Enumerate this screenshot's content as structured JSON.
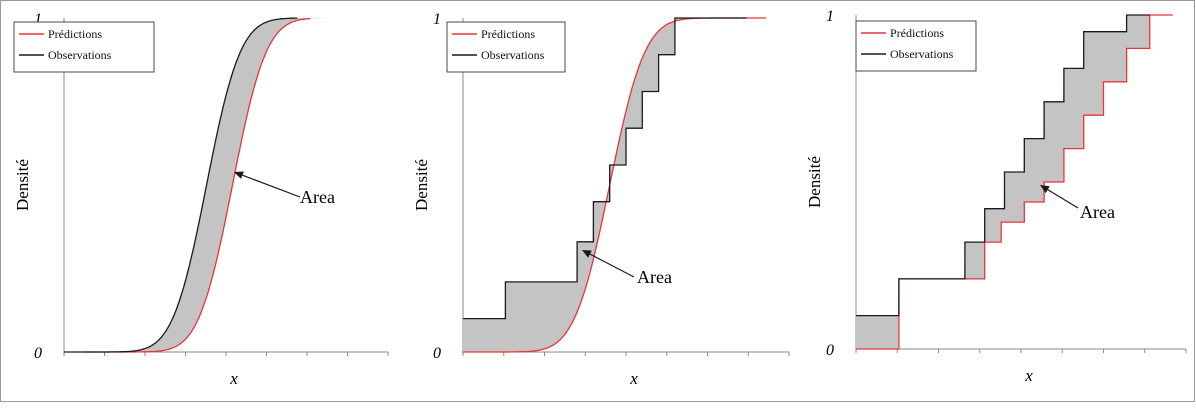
{
  "colors": {
    "predictions": "#e8343a",
    "observations": "#1a1a1a",
    "area_fill": "#c4c4c4",
    "axis": "#8a8a8a"
  },
  "chart_data": [
    {
      "type": "area",
      "title": "",
      "xlabel": "x",
      "ylabel": "Densité",
      "ylim": [
        0,
        1
      ],
      "yticks": [
        "0",
        "1"
      ],
      "grid": false,
      "legend": "top-left",
      "annotation": "Area",
      "series": [
        {
          "name": "Prédictions",
          "kind": "smooth-cdf",
          "center": 0.52,
          "scale": 0.082,
          "x": [
            0.06,
            0.76
          ]
        },
        {
          "name": "Observations",
          "kind": "smooth-cdf",
          "center": 0.44,
          "scale": 0.082,
          "x": [
            0.0,
            0.72
          ]
        }
      ]
    },
    {
      "type": "area",
      "title": "",
      "xlabel": "x",
      "ylabel": "Densité",
      "ylim": [
        0,
        1
      ],
      "yticks": [
        "0",
        "1"
      ],
      "grid": false,
      "legend": "top-left",
      "annotation": "Area",
      "series": [
        {
          "name": "Prédictions",
          "kind": "smooth-cdf",
          "center": 0.45,
          "scale": 0.085,
          "x": [
            0.0,
            0.93
          ]
        },
        {
          "name": "Observations",
          "kind": "step",
          "x": [
            0.0,
            0.13,
            0.35,
            0.4,
            0.45,
            0.5,
            0.55,
            0.6,
            0.65,
            0.7,
            0.8
          ],
          "y": [
            0.1,
            0.21,
            0.33,
            0.45,
            0.56,
            0.67,
            0.78,
            0.89,
            1.0,
            1.0,
            1.0
          ]
        }
      ]
    },
    {
      "type": "area",
      "title": "",
      "xlabel": "x",
      "ylabel": "Densité",
      "ylim": [
        0,
        1
      ],
      "yticks": [
        "0",
        "1"
      ],
      "grid": false,
      "legend": "top-left",
      "annotation": "Area",
      "series": [
        {
          "name": "Prédictions",
          "kind": "step",
          "x": [
            0.0,
            0.13,
            0.26,
            0.39,
            0.44,
            0.51,
            0.57,
            0.63,
            0.69,
            0.75,
            0.82,
            0.89
          ],
          "y": [
            0.0,
            0.21,
            0.21,
            0.32,
            0.38,
            0.44,
            0.5,
            0.6,
            0.7,
            0.8,
            0.9,
            1.0
          ]
        },
        {
          "name": "Observations",
          "kind": "step",
          "x": [
            0.0,
            0.13,
            0.26,
            0.33,
            0.39,
            0.45,
            0.51,
            0.57,
            0.63,
            0.69,
            0.82
          ],
          "y": [
            0.1,
            0.21,
            0.21,
            0.32,
            0.42,
            0.53,
            0.63,
            0.74,
            0.84,
            0.95,
            1.0
          ]
        }
      ]
    }
  ]
}
